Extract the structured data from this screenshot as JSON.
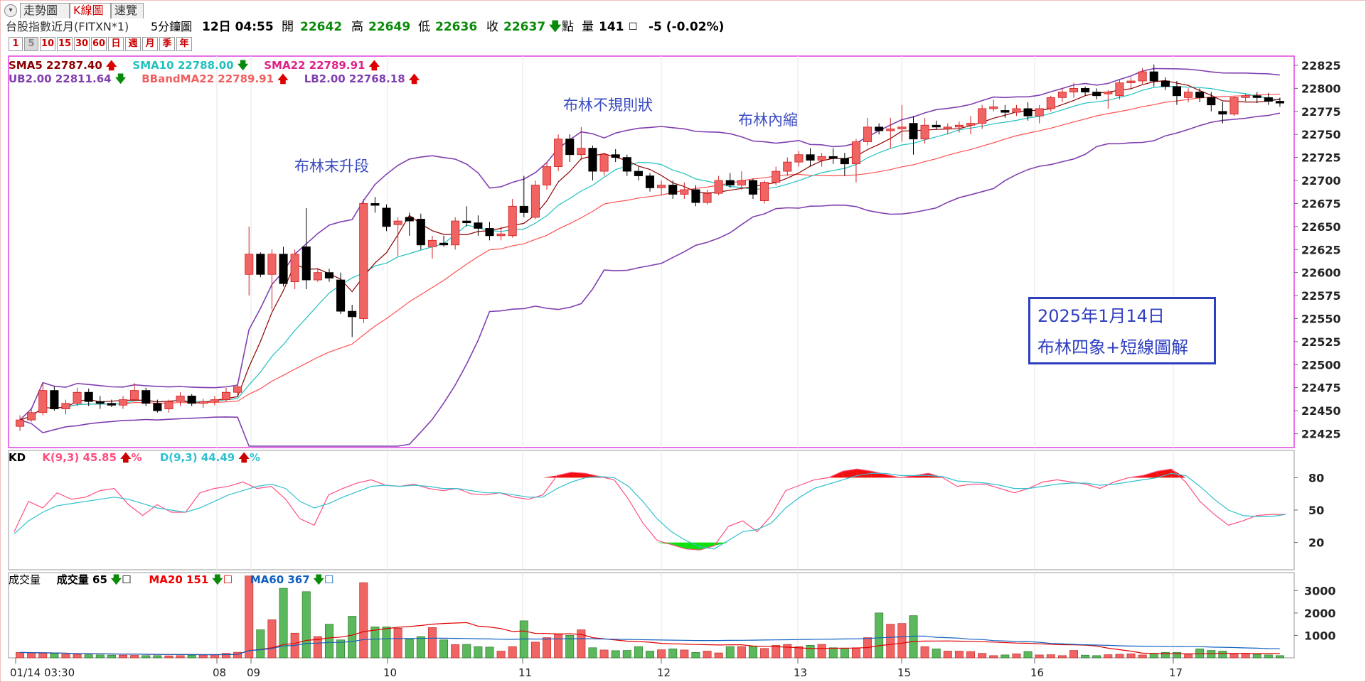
{
  "tabs": [
    {
      "label": "走勢圖",
      "active": false
    },
    {
      "label": "K線圖",
      "active": true
    },
    {
      "label": "速覽",
      "active": false
    }
  ],
  "info": {
    "symbol": "台股指數近月(FITXN*1)",
    "period": "5分鐘圖",
    "datetime": "12日 04:55",
    "open_label": "開",
    "open": "22642",
    "high_label": "高",
    "high": "22649",
    "low_label": "低",
    "low": "22636",
    "close_label": "收",
    "close": "22637",
    "points_label": "點",
    "volume_label": "量",
    "volume": "141",
    "change": "-5 (-0.02%)"
  },
  "intervals": [
    "1",
    "5",
    "10",
    "15",
    "30",
    "60",
    "日",
    "週",
    "月",
    "季",
    "年"
  ],
  "active_interval": "5",
  "legend_price_line1": [
    {
      "text": "SMA5 22787.40",
      "color": "#8b0000",
      "arrow": "up"
    },
    {
      "text": "SMA10 22788.00",
      "color": "#20c0c0",
      "arrow": "down"
    },
    {
      "text": "SMA22 22789.91",
      "color": "#e0208a",
      "arrow": "up"
    }
  ],
  "legend_price_line2": [
    {
      "text": "UB2.00 22811.64",
      "color": "#8040b0",
      "arrow": "down"
    },
    {
      "text": "BBandMA22 22789.91",
      "color": "#f06060",
      "arrow": "up"
    },
    {
      "text": "LB2.00 22768.18",
      "color": "#8040b0",
      "arrow": "up"
    }
  ],
  "legend_kd": {
    "title": "KD",
    "k": "K(9,3) 45.85",
    "k_unit": "%",
    "d": "D(9,3) 44.49",
    "d_unit": "%"
  },
  "legend_vol": {
    "title": "成交量",
    "vol": "成交量 65",
    "ma20": "MA20 151",
    "ma60": "MA60 367"
  },
  "annotations": {
    "a1": "布林末升段",
    "a2": "布林不規則狀",
    "a3": "布林內縮"
  },
  "note": {
    "line1": "2025年1月14日",
    "line2": "布林四象+短線圖解"
  },
  "colors": {
    "up": "#f06464",
    "down": "#000000",
    "bband": "#8040b0",
    "bmid": "#ff5050",
    "sma5": "#8b0000",
    "sma10": "#20c0c0",
    "k": "#ff4f7f",
    "d": "#30c0d0",
    "vol_up": "#f06464",
    "vol_down": "#5cb85c",
    "frame": "#e040e0"
  },
  "chart_data": [
    {
      "type": "candlestick",
      "ylim": [
        22410,
        22835
      ],
      "yticks": [
        "22825",
        "22800",
        "22775",
        "22750",
        "22725",
        "22700",
        "22675",
        "22650",
        "22625",
        "22600",
        "22575",
        "22550",
        "22525",
        "22500",
        "22475",
        "22450",
        "22425"
      ],
      "xticks": [
        "01/14 03:30",
        "08",
        "09",
        "10",
        "11",
        "12",
        "13",
        "15",
        "16",
        "17"
      ],
      "ohlc": [
        [
          22433,
          22445,
          22428,
          22440
        ],
        [
          22440,
          22452,
          22438,
          22448
        ],
        [
          22448,
          22480,
          22445,
          22472
        ],
        [
          22472,
          22476,
          22450,
          22452
        ],
        [
          22452,
          22462,
          22446,
          22458
        ],
        [
          22458,
          22475,
          22455,
          22470
        ],
        [
          22470,
          22474,
          22455,
          22460
        ],
        [
          22460,
          22466,
          22452,
          22458
        ],
        [
          22458,
          22462,
          22454,
          22456
        ],
        [
          22456,
          22466,
          22452,
          22462
        ],
        [
          22462,
          22480,
          22460,
          22472
        ],
        [
          22472,
          22475,
          22455,
          22458
        ],
        [
          22458,
          22462,
          22448,
          22450
        ],
        [
          22452,
          22462,
          22448,
          22460
        ],
        [
          22460,
          22470,
          22455,
          22466
        ],
        [
          22466,
          22468,
          22455,
          22458
        ],
        [
          22458,
          22463,
          22453,
          22460
        ],
        [
          22460,
          22466,
          22456,
          22462
        ],
        [
          22462,
          22475,
          22460,
          22470
        ],
        [
          22470,
          22480,
          22466,
          22476
        ],
        [
          22598,
          22650,
          22575,
          22620
        ],
        [
          22620,
          22622,
          22595,
          22598
        ],
        [
          22598,
          22625,
          22560,
          22620
        ],
        [
          22620,
          22628,
          22585,
          22588
        ],
        [
          22590,
          22625,
          22582,
          22620
        ],
        [
          22628,
          22670,
          22582,
          22592
        ],
        [
          22592,
          22605,
          22590,
          22600
        ],
        [
          22600,
          22604,
          22590,
          22594
        ],
        [
          22592,
          22600,
          22555,
          22558
        ],
        [
          22558,
          22565,
          22530,
          22552
        ],
        [
          22550,
          22680,
          22545,
          22675
        ],
        [
          22675,
          22682,
          22665,
          22673
        ],
        [
          22670,
          22674,
          22645,
          22650
        ],
        [
          22652,
          22660,
          22618,
          22656
        ],
        [
          22660,
          22665,
          22640,
          22656
        ],
        [
          22658,
          22664,
          22625,
          22630
        ],
        [
          22628,
          22640,
          22615,
          22635
        ],
        [
          22632,
          22640,
          22628,
          22630
        ],
        [
          22630,
          22660,
          22625,
          22656
        ],
        [
          22656,
          22672,
          22650,
          22654
        ],
        [
          22654,
          22662,
          22640,
          22648
        ],
        [
          22648,
          22655,
          22635,
          22640
        ],
        [
          22640,
          22650,
          22635,
          22642
        ],
        [
          22640,
          22680,
          22638,
          22672
        ],
        [
          22672,
          22705,
          22660,
          22665
        ],
        [
          22660,
          22700,
          22658,
          22695
        ],
        [
          22695,
          22720,
          22690,
          22715
        ],
        [
          22715,
          22750,
          22710,
          22745
        ],
        [
          22745,
          22750,
          22720,
          22728
        ],
        [
          22728,
          22758,
          22722,
          22735
        ],
        [
          22735,
          22738,
          22700,
          22710
        ],
        [
          22710,
          22730,
          22705,
          22728
        ],
        [
          22728,
          22734,
          22720,
          22725
        ],
        [
          22725,
          22728,
          22705,
          22710
        ],
        [
          22710,
          22715,
          22700,
          22705
        ],
        [
          22705,
          22708,
          22688,
          22692
        ],
        [
          22692,
          22700,
          22684,
          22695
        ],
        [
          22695,
          22700,
          22680,
          22685
        ],
        [
          22685,
          22698,
          22680,
          22690
        ],
        [
          22690,
          22695,
          22672,
          22676
        ],
        [
          22676,
          22690,
          22674,
          22686
        ],
        [
          22686,
          22705,
          22684,
          22700
        ],
        [
          22700,
          22708,
          22692,
          22695
        ],
        [
          22695,
          22710,
          22690,
          22700
        ],
        [
          22700,
          22702,
          22680,
          22685
        ],
        [
          22678,
          22700,
          22675,
          22698
        ],
        [
          22698,
          22715,
          22695,
          22710
        ],
        [
          22710,
          22725,
          22705,
          22720
        ],
        [
          22720,
          22732,
          22715,
          22728
        ],
        [
          22728,
          22735,
          22715,
          22722
        ],
        [
          22722,
          22730,
          22715,
          22726
        ],
        [
          22726,
          22735,
          22718,
          22724
        ],
        [
          22724,
          22730,
          22705,
          22718
        ],
        [
          22718,
          22745,
          22698,
          22742
        ],
        [
          22742,
          22768,
          22738,
          22758
        ],
        [
          22758,
          22762,
          22750,
          22754
        ],
        [
          22754,
          22768,
          22735,
          22756
        ],
        [
          22756,
          22782,
          22742,
          22758
        ],
        [
          22762,
          22770,
          22728,
          22745
        ],
        [
          22745,
          22768,
          22740,
          22760
        ],
        [
          22760,
          22765,
          22755,
          22758
        ],
        [
          22756,
          22762,
          22750,
          22758
        ],
        [
          22758,
          22764,
          22752,
          22760
        ],
        [
          22760,
          22770,
          22750,
          22762
        ],
        [
          22762,
          22782,
          22756,
          22778
        ],
        [
          22778,
          22788,
          22775,
          22780
        ],
        [
          22776,
          22782,
          22768,
          22774
        ],
        [
          22774,
          22782,
          22770,
          22778
        ],
        [
          22778,
          22785,
          22765,
          22770
        ],
        [
          22770,
          22782,
          22762,
          22778
        ],
        [
          22778,
          22792,
          22775,
          22790
        ],
        [
          22790,
          22800,
          22785,
          22796
        ],
        [
          22796,
          22806,
          22790,
          22800
        ],
        [
          22800,
          22802,
          22792,
          22796
        ],
        [
          22796,
          22800,
          22788,
          22792
        ],
        [
          22794,
          22798,
          22778,
          22796
        ],
        [
          22792,
          22810,
          22788,
          22806
        ],
        [
          22806,
          22812,
          22800,
          22808
        ],
        [
          22808,
          22822,
          22805,
          22818
        ],
        [
          22818,
          22826,
          22802,
          22808
        ],
        [
          22808,
          22812,
          22798,
          22802
        ],
        [
          22802,
          22808,
          22782,
          22792
        ],
        [
          22790,
          22800,
          22785,
          22796
        ],
        [
          22796,
          22800,
          22785,
          22790
        ],
        [
          22790,
          22796,
          22775,
          22782
        ],
        [
          22775,
          22785,
          22762,
          22772
        ],
        [
          22772,
          22792,
          22770,
          22790
        ],
        [
          22790,
          22794,
          22786,
          22792
        ],
        [
          22792,
          22796,
          22784,
          22790
        ],
        [
          22790,
          22795,
          22782,
          22786
        ],
        [
          22786,
          22790,
          22780,
          22784
        ]
      ]
    },
    {
      "type": "line",
      "ylim": [
        0,
        100
      ],
      "yticks": [
        "80",
        "50",
        "20"
      ],
      "series": [
        {
          "name": "K(9,3)",
          "values": [
            30,
            58,
            52,
            66,
            60,
            62,
            68,
            70,
            55,
            45,
            55,
            48,
            48,
            66,
            70,
            72,
            76,
            70,
            72,
            60,
            42,
            36,
            64,
            70,
            75,
            78,
            73,
            72,
            74,
            70,
            68,
            70,
            65,
            64,
            66,
            62,
            60,
            64,
            82,
            85,
            84,
            81,
            78,
            60,
            38,
            22,
            18,
            14,
            13,
            17,
            35,
            40,
            30,
            45,
            68,
            73,
            78,
            80,
            86,
            88,
            86,
            83,
            80,
            82,
            84,
            80,
            72,
            74,
            74,
            70,
            66,
            70,
            76,
            78,
            76,
            74,
            70,
            76,
            80,
            82,
            86,
            88,
            76,
            58,
            46,
            36,
            40,
            45,
            46,
            46
          ]
        },
        {
          "name": "D(9,3)",
          "values": [
            28,
            40,
            48,
            54,
            56,
            58,
            60,
            62,
            60,
            56,
            52,
            50,
            48,
            52,
            58,
            64,
            68,
            72,
            74,
            70,
            58,
            52,
            56,
            62,
            67,
            72,
            73,
            72,
            73,
            72,
            70,
            70,
            68,
            66,
            66,
            64,
            62,
            62,
            70,
            76,
            80,
            81,
            80,
            72,
            58,
            42,
            30,
            22,
            16,
            14,
            22,
            30,
            32,
            38,
            52,
            62,
            70,
            74,
            78,
            82,
            84,
            84,
            82,
            82,
            82,
            81,
            77,
            76,
            75,
            73,
            70,
            70,
            72,
            74,
            75,
            75,
            73,
            74,
            76,
            78,
            80,
            84,
            82,
            72,
            60,
            50,
            45,
            44,
            44,
            46
          ]
        }
      ]
    },
    {
      "type": "bar",
      "ylim": [
        0,
        3800
      ],
      "yticks": [
        "3000",
        "2000",
        "1000"
      ],
      "values": [
        240,
        220,
        210,
        200,
        160,
        150,
        140,
        130,
        120,
        120,
        110,
        100,
        100,
        90,
        100,
        120,
        130,
        150,
        200,
        250,
        3650,
        1250,
        1700,
        3100,
        1100,
        2950,
        950,
        1500,
        800,
        1850,
        3350,
        1380,
        1380,
        1320,
        830,
        950,
        1350,
        800,
        590,
        600,
        500,
        480,
        300,
        500,
        1650,
        700,
        900,
        1050,
        1000,
        1250,
        450,
        350,
        320,
        330,
        500,
        300,
        360,
        400,
        350,
        240,
        300,
        220,
        500,
        500,
        520,
        420,
        560,
        600,
        500,
        560,
        600,
        450,
        430,
        450,
        900,
        2000,
        1500,
        1530,
        1880,
        500,
        400,
        300,
        300,
        280,
        200,
        100,
        130,
        180,
        280,
        130,
        140,
        100,
        330,
        120,
        100,
        140,
        160,
        180,
        130,
        200,
        240,
        240,
        140,
        400,
        330,
        300,
        160,
        200,
        150,
        130,
        100
      ]
    }
  ]
}
